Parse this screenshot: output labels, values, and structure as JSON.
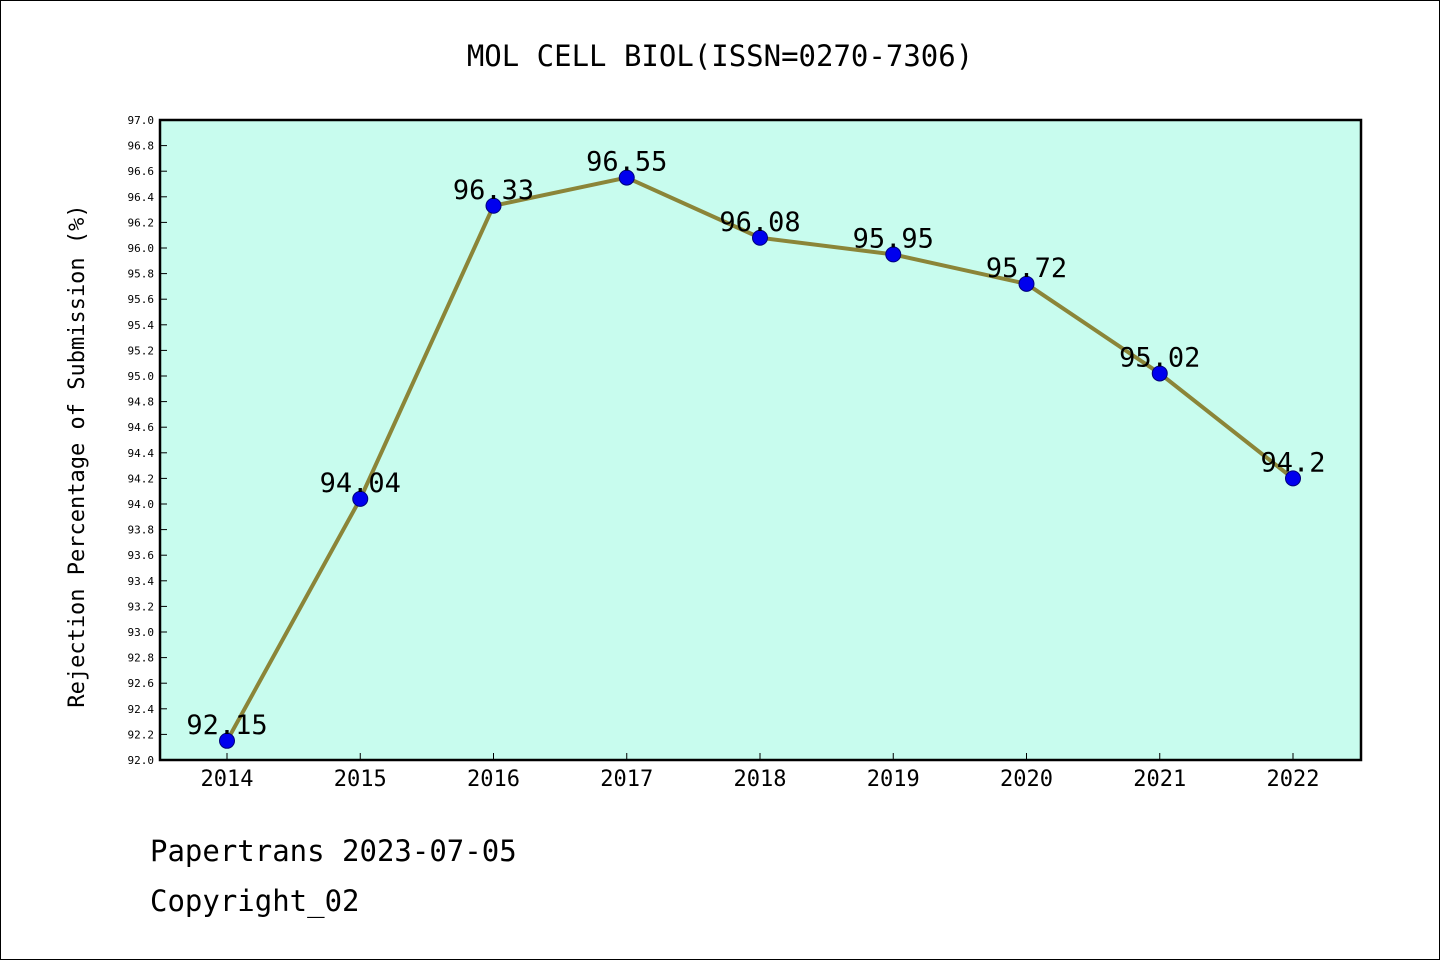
{
  "chart_data": {
    "type": "line",
    "title": "MOL CELL BIOL(ISSN=0270-7306)",
    "xlabel": "",
    "ylabel": "Rejection Percentage of Submission (%)",
    "categories": [
      "2014",
      "2015",
      "2016",
      "2017",
      "2018",
      "2019",
      "2020",
      "2021",
      "2022"
    ],
    "series": [
      {
        "values": [
          92.15,
          94.04,
          96.33,
          96.55,
          96.08,
          95.95,
          95.72,
          95.02,
          94.2
        ],
        "labels": [
          "92.15",
          "94.04",
          "96.33",
          "96.55",
          "96.08",
          "95.95",
          "95.72",
          "95.02",
          "94.2"
        ]
      }
    ],
    "ylim": [
      92.0,
      97.0
    ],
    "ytick_step": 0.2,
    "grid": false,
    "legend": "none",
    "colors": {
      "plot_background": "#c8fcee",
      "line": "#8b8538",
      "marker": "#0000ee",
      "marker_edge": "#00007a",
      "axis": "#000000"
    }
  },
  "footer": {
    "date_line": "Papertrans 2023-07-05",
    "copyright_line": "Copyright_02"
  }
}
